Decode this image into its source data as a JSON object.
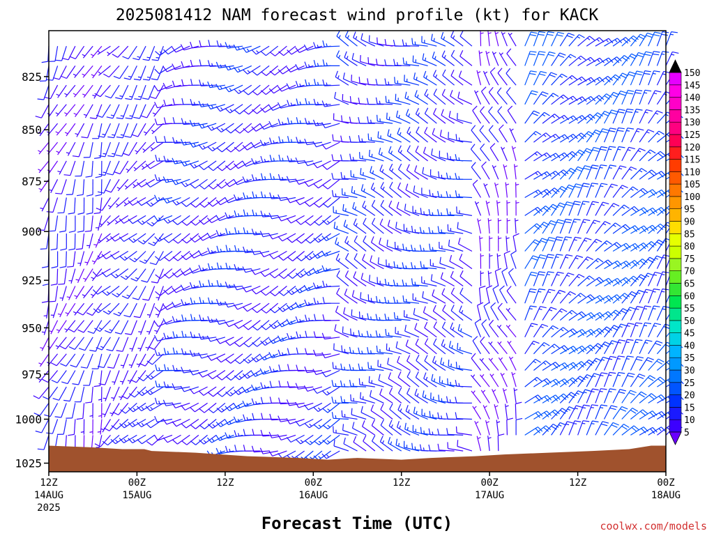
{
  "chart_data": {
    "type": "wind_barb_profile",
    "title": "2025081412 NAM forecast wind profile (kt) for KACK",
    "xlabel": "Forecast Time (UTC)",
    "ylabel": "",
    "credit": "coolwx.com/models",
    "y_scale": "log-pressure, inverted",
    "ylim_hpa": [
      804,
      1030
    ],
    "y_ticks": [
      825,
      850,
      875,
      900,
      925,
      950,
      975,
      1000,
      1025
    ],
    "xlim_hours": [
      0,
      84
    ],
    "x_ticks": [
      {
        "hour": 0,
        "line1": "12Z",
        "line2": "14AUG",
        "line3": "2025"
      },
      {
        "hour": 12,
        "line1": "00Z",
        "line2": "15AUG",
        "line3": ""
      },
      {
        "hour": 24,
        "line1": "12Z",
        "line2": "",
        "line3": ""
      },
      {
        "hour": 36,
        "line1": "00Z",
        "line2": "16AUG",
        "line3": ""
      },
      {
        "hour": 48,
        "line1": "12Z",
        "line2": "",
        "line3": ""
      },
      {
        "hour": 60,
        "line1": "00Z",
        "line2": "17AUG",
        "line3": ""
      },
      {
        "hour": 72,
        "line1": "12Z",
        "line2": "",
        "line3": ""
      },
      {
        "hour": 84,
        "line1": "00Z",
        "line2": "18AUG",
        "line3": ""
      }
    ],
    "barb_grid": {
      "hour_step": 1.2,
      "level_step_hpa": 9,
      "top_level_hpa": 811,
      "bottom_level_hpa": 1024
    },
    "wind_regimes": [
      {
        "hours": [
          0,
          8
        ],
        "speed_kt": 8,
        "dir_deg": 200
      },
      {
        "hours": [
          8,
          16
        ],
        "speed_kt": 10,
        "dir_deg": 220
      },
      {
        "hours": [
          16,
          40
        ],
        "speed_kt": 12,
        "dir_deg": 250
      },
      {
        "hours": [
          40,
          58
        ],
        "speed_kt": 13,
        "dir_deg": 290
      },
      {
        "hours": [
          58,
          64
        ],
        "speed_kt": 7,
        "dir_deg": 340
      },
      {
        "hours": [
          64,
          84
        ],
        "speed_kt": 18,
        "dir_deg": 40
      }
    ],
    "surface_terrain_hpa": [
      {
        "hour": 0,
        "p": 1015
      },
      {
        "hour": 6,
        "p": 1016
      },
      {
        "hour": 10,
        "p": 1017
      },
      {
        "hour": 13,
        "p": 1017
      },
      {
        "hour": 14,
        "p": 1018
      },
      {
        "hour": 20,
        "p": 1019
      },
      {
        "hour": 27,
        "p": 1021
      },
      {
        "hour": 34,
        "p": 1022
      },
      {
        "hour": 38,
        "p": 1023
      },
      {
        "hour": 42,
        "p": 1022
      },
      {
        "hour": 48,
        "p": 1023
      },
      {
        "hour": 52,
        "p": 1022
      },
      {
        "hour": 58,
        "p": 1021
      },
      {
        "hour": 62,
        "p": 1020
      },
      {
        "hour": 68,
        "p": 1019
      },
      {
        "hour": 74,
        "p": 1018
      },
      {
        "hour": 79,
        "p": 1017
      },
      {
        "hour": 82,
        "p": 1015
      },
      {
        "hour": 84,
        "p": 1015
      }
    ],
    "colorbar": {
      "levels": [
        5,
        10,
        15,
        20,
        25,
        30,
        35,
        40,
        45,
        50,
        55,
        60,
        65,
        70,
        75,
        80,
        85,
        90,
        95,
        100,
        105,
        110,
        115,
        120,
        125,
        130,
        135,
        140,
        145,
        150
      ],
      "colors": [
        "#6a00ff",
        "#3c00ff",
        "#1a1aff",
        "#0033ff",
        "#0055ff",
        "#0077ff",
        "#0099ff",
        "#00b4ff",
        "#00d2e6",
        "#00e6c8",
        "#00e68c",
        "#00e650",
        "#33e633",
        "#66ee22",
        "#99f522",
        "#ccff00",
        "#e6ff00",
        "#ffdd00",
        "#ffb400",
        "#ff9600",
        "#ff7800",
        "#ff5a00",
        "#ff3c00",
        "#ff1e1e",
        "#ff0055",
        "#ff0080",
        "#ff00a0",
        "#ff00c8",
        "#ff00e6",
        "#e600ff"
      ]
    },
    "colors": {
      "terrain": "#a0522d",
      "frame": "#000000"
    }
  }
}
